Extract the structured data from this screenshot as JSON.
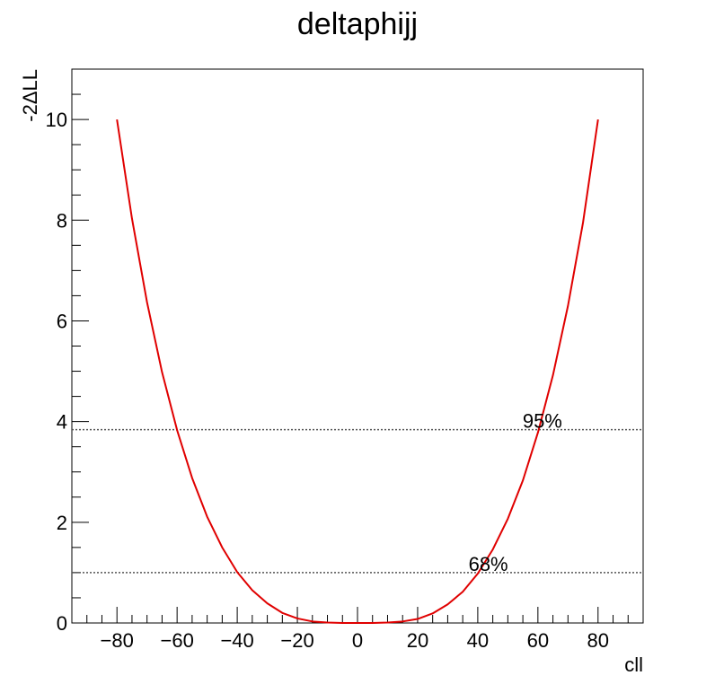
{
  "chart_data": {
    "type": "line",
    "title": "deltaphijj",
    "xlabel": "cll",
    "ylabel": "-2ΔLL",
    "xlim": [
      -95,
      95
    ],
    "ylim": [
      0,
      11
    ],
    "x_ticks": [
      -80,
      -60,
      -40,
      -20,
      0,
      20,
      40,
      60,
      80
    ],
    "x_tick_labels": [
      "−80",
      "−60",
      "−40",
      "−20",
      "0",
      "20",
      "40",
      "60",
      "80"
    ],
    "y_ticks": [
      0,
      2,
      4,
      6,
      8,
      10
    ],
    "y_tick_labels": [
      "0",
      "2",
      "4",
      "6",
      "8",
      "10"
    ],
    "grid": false,
    "series": [
      {
        "color": "#e00000",
        "x": [
          -80,
          -75,
          -70,
          -65,
          -60,
          -55,
          -50,
          -45,
          -40,
          -35,
          -30,
          -25,
          -20,
          -15,
          -10,
          -5,
          0,
          5,
          10,
          15,
          20,
          25,
          30,
          35,
          40,
          45,
          50,
          55,
          60,
          65,
          70,
          75,
          80
        ],
        "y": [
          10.0,
          8.03,
          6.37,
          4.98,
          3.83,
          2.88,
          2.11,
          1.5,
          1.01,
          0.65,
          0.39,
          0.2,
          0.09,
          0.03,
          0.01,
          0.0,
          0.0,
          0.0,
          0.01,
          0.03,
          0.08,
          0.19,
          0.37,
          0.62,
          0.98,
          1.46,
          2.07,
          2.83,
          3.78,
          4.92,
          6.3,
          7.95,
          10.0
        ]
      }
    ],
    "reference_lines": [
      {
        "y": 3.84,
        "label": "95%",
        "label_x": 61.5,
        "color": "#555555"
      },
      {
        "y": 1.0,
        "label": "68%",
        "label_x": 43.5,
        "color": "#555555"
      }
    ]
  }
}
